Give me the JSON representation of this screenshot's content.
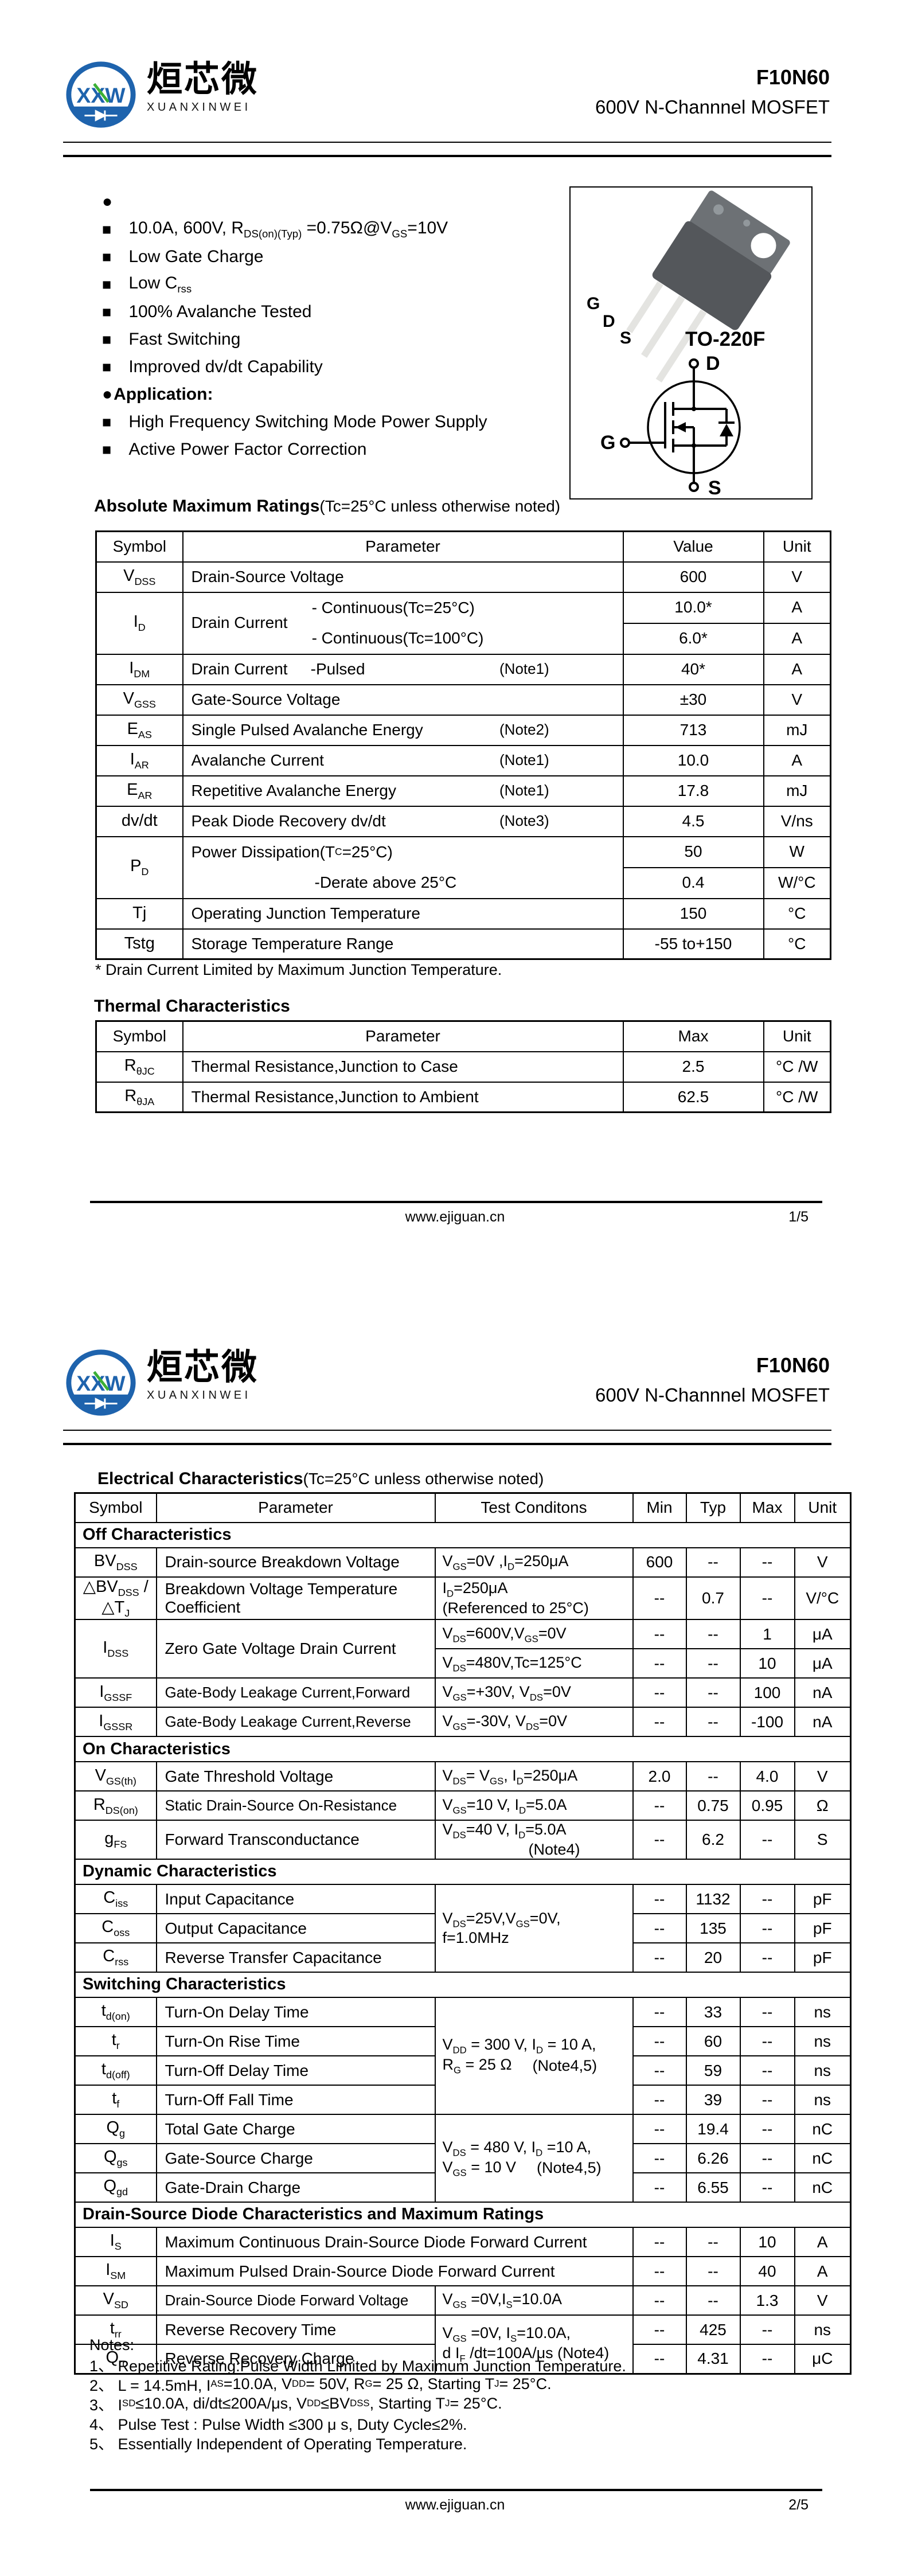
{
  "header": {
    "logo": {
      "letters": "XXW",
      "cn": "烜芯微",
      "en": "XUANXINWEI"
    },
    "part_number": "F10N60",
    "subtitle": "600V N-Channnel MOSFET"
  },
  "footer": {
    "url": "www.ejiguan.cn",
    "page1_num": "1/5",
    "page2_num": "2/5"
  },
  "page1": {
    "features_dot": "●",
    "bullet": "■",
    "features": [
      "10.0A, 600V, R~DS(on)(Typ)~ =0.75Ω@V~GS~=10V",
      "Low Gate Charge",
      "Low C~rss~",
      "100% Avalanche Tested",
      "Fast Switching",
      "Improved dv/dt Capability"
    ],
    "application_title": "Application:",
    "applications": [
      "High Frequency Switching Mode Power Supply",
      "Active Power Factor Correction"
    ],
    "package": {
      "name": "TO-220F",
      "pin_g": "G",
      "pin_d": "D",
      "pin_s": "S",
      "sym_d": "D",
      "sym_g": "G",
      "sym_s": "S"
    },
    "amr": {
      "title": "Absolute Maximum Ratings",
      "suffix": "(Tc=25°C unless otherwise noted)",
      "h": [
        "Symbol",
        "Parameter",
        "Value",
        "Unit"
      ],
      "r_vdss": {
        "sym": "V~DSS~",
        "param": "Drain-Source Voltage",
        "val": "600",
        "unit": "V"
      },
      "r_id": {
        "sym": "I~D~",
        "param": "Drain Current",
        "c1": "- Continuous(Tc=25°C)",
        "c2": "- Continuous(Tc=100°C)",
        "v1": "10.0*",
        "u1": "A",
        "v2": "6.0*",
        "u2": "A"
      },
      "r_idm": {
        "sym": "I~DM~",
        "param": "Drain Current",
        "param2": "-Pulsed",
        "note": "(Note1)",
        "val": "40*",
        "unit": "A"
      },
      "r_vgss": {
        "sym": "V~GSS~",
        "param": "Gate-Source Voltage",
        "val": "±30",
        "unit": "V"
      },
      "r_eas": {
        "sym": "E~AS~",
        "param": "Single Pulsed Avalanche Energy",
        "note": "(Note2)",
        "val": "713",
        "unit": "mJ"
      },
      "r_iar": {
        "sym": "I~AR~",
        "param": "Avalanche Current",
        "note": "(Note1)",
        "val": "10.0",
        "unit": "A"
      },
      "r_ear": {
        "sym": "E~AR~",
        "param": "Repetitive Avalanche Energy",
        "note": "(Note1)",
        "val": "17.8",
        "unit": "mJ"
      },
      "r_dvdt": {
        "sym": "dv/dt",
        "param": "Peak Diode Recovery dv/dt",
        "note": "(Note3)",
        "val": "4.5",
        "unit": "V/ns"
      },
      "r_pd": {
        "sym": "P~D~",
        "l1": "Power Dissipation(T~C~ =25°C)",
        "l2": "-Derate above 25°C",
        "v1": "50",
        "u1": "W",
        "v2": "0.4",
        "u2": "W/°C"
      },
      "r_tj": {
        "sym": "Tj",
        "param": "Operating Junction Temperature",
        "val": "150",
        "unit": "°C"
      },
      "r_tstg": {
        "sym": "Tstg",
        "param": "Storage Temperature Range",
        "val": "-55 to+150",
        "unit": "°C"
      },
      "footnote": "* Drain Current Limited by Maximum Junction Temperature."
    },
    "thermal": {
      "title": "Thermal Characteristics",
      "h": [
        "Symbol",
        "Parameter",
        "Max",
        "Unit"
      ],
      "r_jc": {
        "sym": "R~θJC~",
        "param": "Thermal Resistance,Junction to Case",
        "val": "2.5",
        "unit": "°C /W"
      },
      "r_ja": {
        "sym": "R~θJA~",
        "param": "Thermal Resistance,Junction to Ambient",
        "val": "62.5",
        "unit": "°C /W"
      }
    }
  },
  "page2": {
    "ec": {
      "title": "Electrical Characteristics",
      "suffix": "(Tc=25°C unless otherwise noted)",
      "h": [
        "Symbol",
        "Parameter",
        "Test Conditons",
        "Min",
        "Typ",
        "Max",
        "Unit"
      ],
      "sec_off": "Off Characteristics",
      "r_bvdss": {
        "sym": "BV~DSS~",
        "param": "Drain-source Breakdown Voltage",
        "cond": "V~GS~=0V ,I~D~=250μA",
        "min": "600",
        "typ": "--",
        "max": "--",
        "unit": "V"
      },
      "r_dbv": {
        "sym": "△BV~DSS~ /△T~J~",
        "param": "Breakdown Voltage Temperature Coefficient",
        "cond1": "I~D~=250μA",
        "cond2": "(Referenced to 25°C)",
        "min": "--",
        "typ": "0.7",
        "max": "--",
        "unit": "V/°C"
      },
      "r_idss": {
        "sym": "I~DSS~",
        "param": "Zero Gate Voltage Drain Current",
        "cond_a": "V~DS~=600V,V~GS~=0V",
        "cond_b": "V~DS~=480V,Tc=125°C",
        "a": {
          "min": "--",
          "typ": "--",
          "max": "1",
          "unit": "μA"
        },
        "b": {
          "min": "--",
          "typ": "--",
          "max": "10",
          "unit": "μA"
        }
      },
      "r_igssf": {
        "sym": "I~GSSF~",
        "param": "Gate-Body Leakage Current,Forward",
        "cond": "V~GS~=+30V, V~DS~=0V",
        "min": "--",
        "typ": "--",
        "max": "100",
        "unit": "nA"
      },
      "r_igssr": {
        "sym": "I~GSSR~",
        "param": "Gate-Body Leakage Current,Reverse",
        "cond": "V~GS~=-30V, V~DS~=0V",
        "min": "--",
        "typ": "--",
        "max": "-100",
        "unit": "nA"
      },
      "sec_on": "On Characteristics",
      "r_vgsth": {
        "sym": "V~GS(th)~",
        "param": "Gate Threshold Voltage",
        "cond": "V~DS~= V~GS~, I~D~=250μA",
        "min": "2.0",
        "typ": "--",
        "max": "4.0",
        "unit": "V"
      },
      "r_rdson": {
        "sym": "R~DS(on)~",
        "param": "Static Drain-Source On-Resistance",
        "cond": "V~GS~=10 V, I~D~=5.0A",
        "min": "--",
        "typ": "0.75",
        "max": "0.95",
        "unit": "Ω"
      },
      "r_gfs": {
        "sym": "g~FS~",
        "param": "Forward Transconductance",
        "cond1": "V~DS~=40 V, I~D~=5.0A",
        "cond2": "(Note4)",
        "min": "--",
        "typ": "6.2",
        "max": "--",
        "unit": "S"
      },
      "sec_dyn": "Dynamic Characteristics",
      "cond_cap1": "V~DS~=25V,V~GS~=0V,",
      "cond_cap2": "f=1.0MHz",
      "r_ciss": {
        "sym": "C~iss~",
        "param": "Input Capacitance",
        "min": "--",
        "typ": "1132",
        "max": "--",
        "unit": "pF"
      },
      "r_coss": {
        "sym": "C~oss~",
        "param": "Output Capacitance",
        "min": "--",
        "typ": "135",
        "max": "--",
        "unit": "pF"
      },
      "r_crss": {
        "sym": "C~rss~",
        "param": "Reverse Transfer Capacitance",
        "min": "--",
        "typ": "20",
        "max": "--",
        "unit": "pF"
      },
      "sec_sw": "Switching Characteristics",
      "cond_sw1": "V~DD~ = 300 V, I~D~ = 10 A,",
      "cond_sw2": "R~G~ = 25 Ω",
      "cond_sw_note": "(Note4,5)",
      "r_tdon": {
        "sym": "t~d(on)~",
        "param": "Turn-On Delay Time",
        "min": "--",
        "typ": "33",
        "max": "--",
        "unit": "ns"
      },
      "r_tr": {
        "sym": "t~r~",
        "param": "Turn-On Rise Time",
        "min": "--",
        "typ": "60",
        "max": "--",
        "unit": "ns"
      },
      "r_tdoff": {
        "sym": "t~d(off)~",
        "param": "Turn-Off Delay Time",
        "min": "--",
        "typ": "59",
        "max": "--",
        "unit": "ns"
      },
      "r_tf": {
        "sym": "t~f~",
        "param": "Turn-Off Fall Time",
        "min": "--",
        "typ": "39",
        "max": "--",
        "unit": "ns"
      },
      "cond_q1": "V~DS~ = 480 V, I~D~ =10 A,",
      "cond_q2": "V~GS~ = 10 V",
      "cond_q_note": "(Note4,5)",
      "r_qg": {
        "sym": "Q~g~",
        "param": "Total Gate Charge",
        "min": "--",
        "typ": "19.4",
        "max": "--",
        "unit": "nC"
      },
      "r_qgs": {
        "sym": "Q~gs~",
        "param": "Gate-Source Charge",
        "min": "--",
        "typ": "6.26",
        "max": "--",
        "unit": "nC"
      },
      "r_qgd": {
        "sym": "Q~gd~",
        "param": "Gate-Drain Charge",
        "min": "--",
        "typ": "6.55",
        "max": "--",
        "unit": "nC"
      },
      "sec_diode": "Drain-Source Diode Characteristics and Maximum Ratings",
      "r_is": {
        "sym": "I~S~",
        "param": "Maximum Continuous Drain-Source Diode Forward Current",
        "min": "--",
        "typ": "--",
        "max": "10",
        "unit": "A"
      },
      "r_ism": {
        "sym": "I~SM~",
        "param": "Maximum Pulsed Drain-Source Diode Forward Current",
        "min": "--",
        "typ": "--",
        "max": "40",
        "unit": "A"
      },
      "r_vsd": {
        "sym": "V~SD~",
        "param": "Drain-Source Diode Forward Voltage",
        "cond": "V~GS~ =0V,I~S~=10.0A",
        "min": "--",
        "typ": "--",
        "max": "1.3",
        "unit": "V"
      },
      "cond_rr1": "V~GS~ =0V, I~S~=10.0A,",
      "cond_rr2": "d I~F~ /dt=100A/μs (Note4)",
      "r_trr": {
        "sym": "t~rr~",
        "param": "Reverse Recovery Time",
        "min": "--",
        "typ": "425",
        "max": "--",
        "unit": "ns"
      },
      "r_qrr": {
        "sym": "Q~rr~",
        "param": "Reverse Recovery Charge",
        "min": "--",
        "typ": "4.31",
        "max": "--",
        "unit": "μC"
      }
    },
    "notes": {
      "label": "Notes:",
      "items": [
        "1、 Repetitive Rating:Pulse Width Limited by Maximum Junction Temperature.",
        "2、 L = 14.5mH, I~AS~ =10.0A, V~DD~ = 50V, R~G~ = 25 Ω, Starting T~J~ = 25°C.",
        "3、 I~SD~≤10.0A, di/dt≤200A/μs, V~DD~≤BV~DSS~, Starting T~J~ = 25°C.",
        "4、 Pulse Test : Pulse Width ≤300 μ s, Duty Cycle≤2%.",
        "5、 Essentially Independent of Operating Temperature."
      ]
    }
  }
}
